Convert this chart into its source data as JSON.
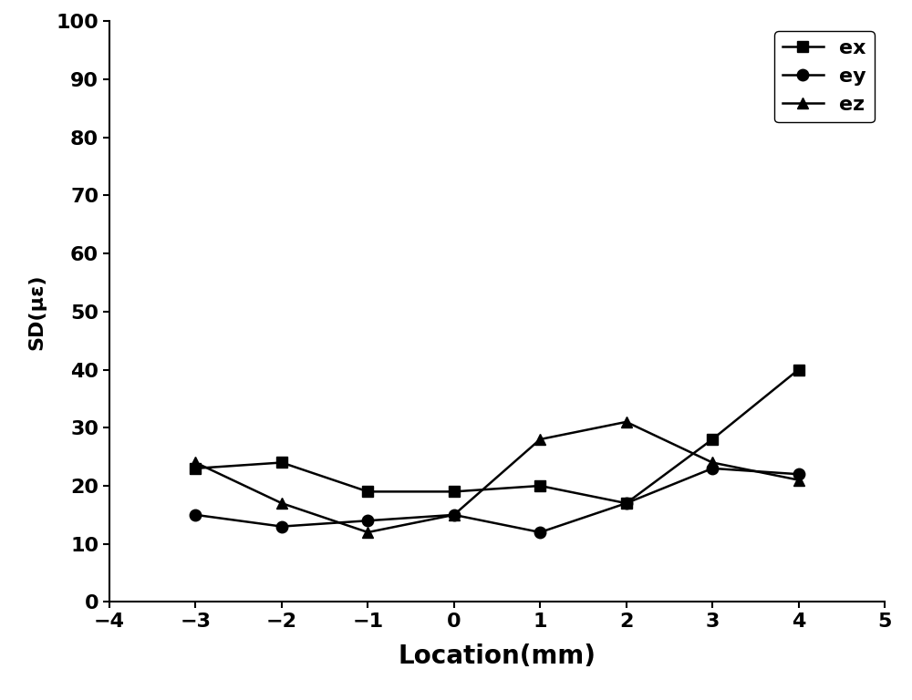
{
  "x": [
    -3,
    -2,
    -1,
    0,
    1,
    2,
    3,
    4
  ],
  "ex": [
    23,
    24,
    19,
    19,
    20,
    17,
    28,
    40
  ],
  "ey": [
    15,
    13,
    14,
    15,
    12,
    17,
    23,
    22
  ],
  "ez": [
    24,
    17,
    12,
    15,
    28,
    31,
    24,
    21
  ],
  "xlabel": "Location(mm)",
  "ylabel": "SD(με)",
  "xlim": [
    -4,
    5
  ],
  "ylim": [
    0,
    100
  ],
  "xticks": [
    -4,
    -3,
    -2,
    -1,
    0,
    1,
    2,
    3,
    4,
    5
  ],
  "yticks": [
    0,
    10,
    20,
    30,
    40,
    50,
    60,
    70,
    80,
    90,
    100
  ],
  "line_color": "#000000",
  "marker_ex": "s",
  "marker_ey": "o",
  "marker_ez": "^",
  "legend_labels": [
    "ex",
    "ey",
    "ez"
  ],
  "markersize": 9,
  "linewidth": 1.8,
  "xlabel_fontsize": 20,
  "ylabel_fontsize": 16,
  "tick_fontsize": 16,
  "legend_fontsize": 16
}
